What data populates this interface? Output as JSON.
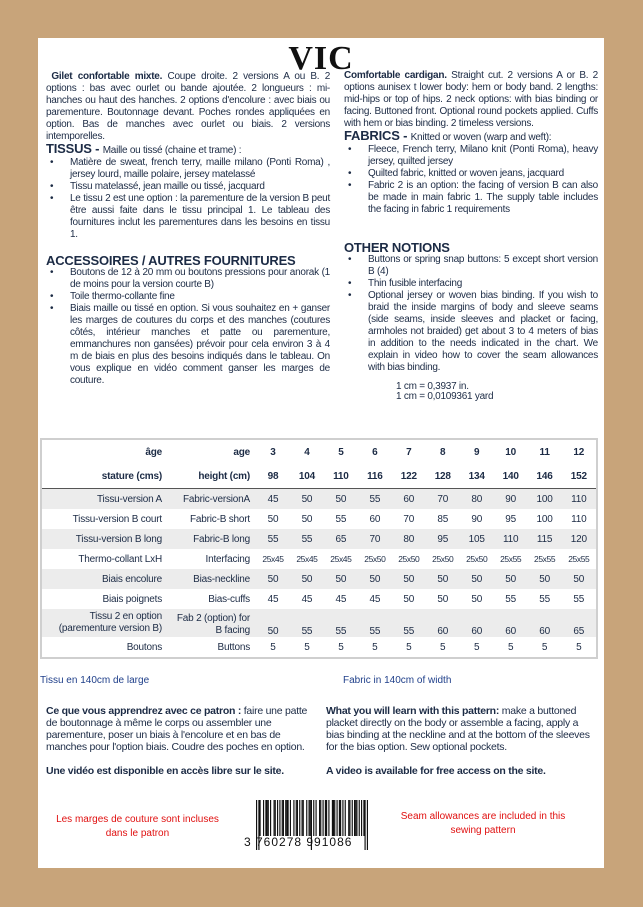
{
  "title": "VIC",
  "fr": {
    "intro_bold": "Gilet confortable mixte.",
    "intro": " Coupe droite. 2 versions A ou B. 2 options : bas avec ourlet ou bande ajoutée. 2 longueurs : mi-hanches ou haut des hanches. 2 options d'encolure : avec biais ou parementure. Boutonnage devant. Poches rondes appliquées en option. Bas de manches avec ourlet ou biais. 2 versions intemporelles.",
    "fabrics_title": "TISSUS - ",
    "fabrics_sub": "Maille ou tissé (chaine et trame) :",
    "fabrics": [
      "Matière de sweat, french terry, maille milano (Ponti Roma) , jersey lourd, maille polaire, jersey matelassé",
      "Tissu matelassé, jean maille ou tissé, jacquard",
      "Le tissu 2 est une option : la parementure de la version B peut être aussi faite dans le tissu principal 1. Le tableau des fournitures inclut les parementures dans les besoins en tissu 1."
    ],
    "notions_title": "ACCESSOIRES / AUTRES FOURNITURES",
    "notions": [
      "Boutons de 12 à 20 mm ou boutons pressions pour anorak (1 de moins pour la version courte B)",
      "Toile thermo-collante fine",
      "Biais maille ou tissé en option. Si vous souhaitez en + ganser les marges de coutures du corps et des manches (coutures côtés, intérieur manches et patte ou parementure, emmanchures non gansées) prévoir pour cela environ 3 à 4 m de biais en plus des besoins indiqués dans le tableau. On vous explique en vidéo comment ganser les marges de couture."
    ],
    "width_note": "Tissu en 140cm de large",
    "learn_bold": "Ce que vous apprendrez avec ce patron :",
    "learn": " faire une patte de boutonnage à même le corps ou assembler une parementure, poser un biais à l'encolure et en bas de manches pour l'option biais. Coudre des poches en option.",
    "video": "Une vidéo est disponible en accès libre sur le site.",
    "seam": "Les marges de couture sont incluses dans le patron"
  },
  "en": {
    "intro_bold": "Comfortable cardigan.",
    "intro": " Straight cut. 2 versions A or B. 2 options aunisex t lower body: hem or body band. 2 lengths: mid-hips or top of hips. 2 neck options: with bias binding or facing. Buttoned front. Optional round pockets applied. Cuffs with hem or bias binding. 2 timeless versions.",
    "fabrics_title": "FABRICS - ",
    "fabrics_sub": "Knitted or woven (warp and weft):",
    "fabrics": [
      "Fleece, French terry, Milano knit (Ponti Roma), heavy jersey, quilted jersey",
      "Quilted fabric, knitted or woven jeans, jacquard",
      "Fabric 2 is an option: the facing of version B can also be made in main fabric 1. The supply table includes the facing in fabric 1 requirements"
    ],
    "notions_title": "OTHER NOTIONS",
    "notions": [
      "Buttons or spring snap buttons: 5 except short version B (4)",
      "Thin fusible interfacing",
      "Optional jersey or woven bias binding. If you wish to braid the inside margins of body and sleeve seams (side seams, inside sleeves and placket or facing, armholes not braided) get about 3 to 4 meters of bias in addition to the needs indicated in the chart. We explain in video how to cover the seam allowances with bias binding."
    ],
    "conv1": "1 cm = 0,3937 in.",
    "conv2": "1 cm = 0,0109361 yard",
    "width_note": "Fabric in 140cm of width",
    "learn_bold": "What you will learn with this pattern:",
    "learn": " make a buttoned placket directly on the body or assemble a facing, apply a bias binding at the neckline and at the bottom of the sleeves for the bias option. Sew optional pockets.",
    "video": "A video is available for free access on the site.",
    "seam": "Seam allowances are included in this sewing pattern"
  },
  "table": {
    "header_age": {
      "fr": "âge",
      "en": "age",
      "values": [
        "3",
        "4",
        "5",
        "6",
        "7",
        "8",
        "9",
        "10",
        "11",
        "12"
      ]
    },
    "header_height": {
      "fr": "stature (cms)",
      "en": "height (cm)",
      "values": [
        "98",
        "104",
        "110",
        "116",
        "122",
        "128",
        "134",
        "140",
        "146",
        "152"
      ]
    },
    "rows": [
      {
        "fr": "Tissu-version A",
        "en": "Fabric-versionA",
        "values": [
          "45",
          "50",
          "50",
          "55",
          "60",
          "70",
          "80",
          "90",
          "100",
          "110"
        ]
      },
      {
        "fr": "Tissu-version B court",
        "en": "Fabric-B short",
        "values": [
          "50",
          "50",
          "55",
          "60",
          "70",
          "85",
          "90",
          "95",
          "100",
          "110"
        ]
      },
      {
        "fr": "Tissu-version B long",
        "en": "Fabric-B long",
        "values": [
          "55",
          "55",
          "65",
          "70",
          "80",
          "95",
          "105",
          "110",
          "115",
          "120"
        ]
      },
      {
        "fr": "Thermo-collant   LxH",
        "en": "Interfacing",
        "values": [
          "25x45",
          "25x45",
          "25x45",
          "25x50",
          "25x50",
          "25x50",
          "25x50",
          "25x55",
          "25x55",
          "25x55"
        ]
      },
      {
        "fr": "Biais encolure",
        "en": "Bias-neckline",
        "values": [
          "50",
          "50",
          "50",
          "50",
          "50",
          "50",
          "50",
          "50",
          "50",
          "50"
        ]
      },
      {
        "fr": "Biais poignets",
        "en": "Bias-cuffs",
        "values": [
          "45",
          "45",
          "45",
          "45",
          "50",
          "50",
          "50",
          "55",
          "55",
          "55"
        ]
      },
      {
        "fr": "Tissu 2 en option (parementure version B)",
        "en": "Fab 2 (option) for B facing",
        "values": [
          "50",
          "55",
          "55",
          "55",
          "55",
          "60",
          "60",
          "60",
          "60",
          "65"
        ]
      },
      {
        "fr": "Boutons",
        "en": "Buttons",
        "values": [
          "5",
          "5",
          "5",
          "5",
          "5",
          "5",
          "5",
          "5",
          "5",
          "5"
        ]
      }
    ]
  },
  "barcode": "3 760278 991086"
}
